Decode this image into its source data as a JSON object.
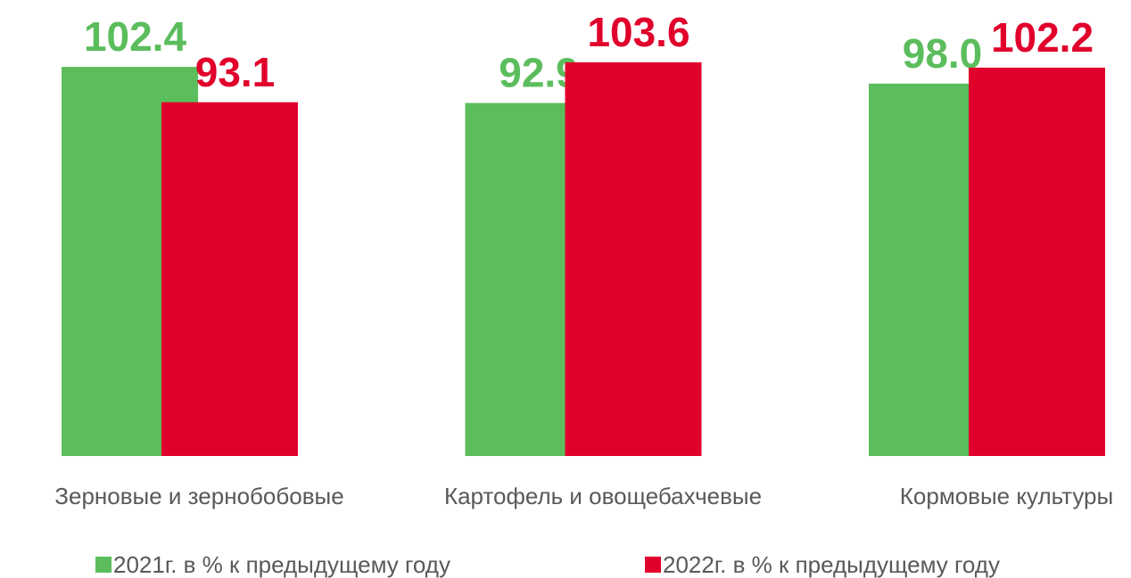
{
  "chart_data": {
    "type": "bar",
    "categories": [
      "Зерновые и зернобобовые",
      "Картофель и овощебахчевые",
      "Кормовые культуры"
    ],
    "series": [
      {
        "name": "2021г. в % к предыдущему году",
        "color": "#5bbd5c",
        "values": [
          102.4,
          92.9,
          98.0
        ],
        "value_labels": [
          "102.4",
          "92.9",
          "98.0"
        ]
      },
      {
        "name": "2022г. в % к предыдущему году",
        "color": "#e1002b",
        "values": [
          93.1,
          103.6,
          102.2
        ],
        "value_labels": [
          "93.1",
          "103.6",
          "102.2"
        ]
      }
    ],
    "ylim": [
      0,
      120
    ]
  }
}
